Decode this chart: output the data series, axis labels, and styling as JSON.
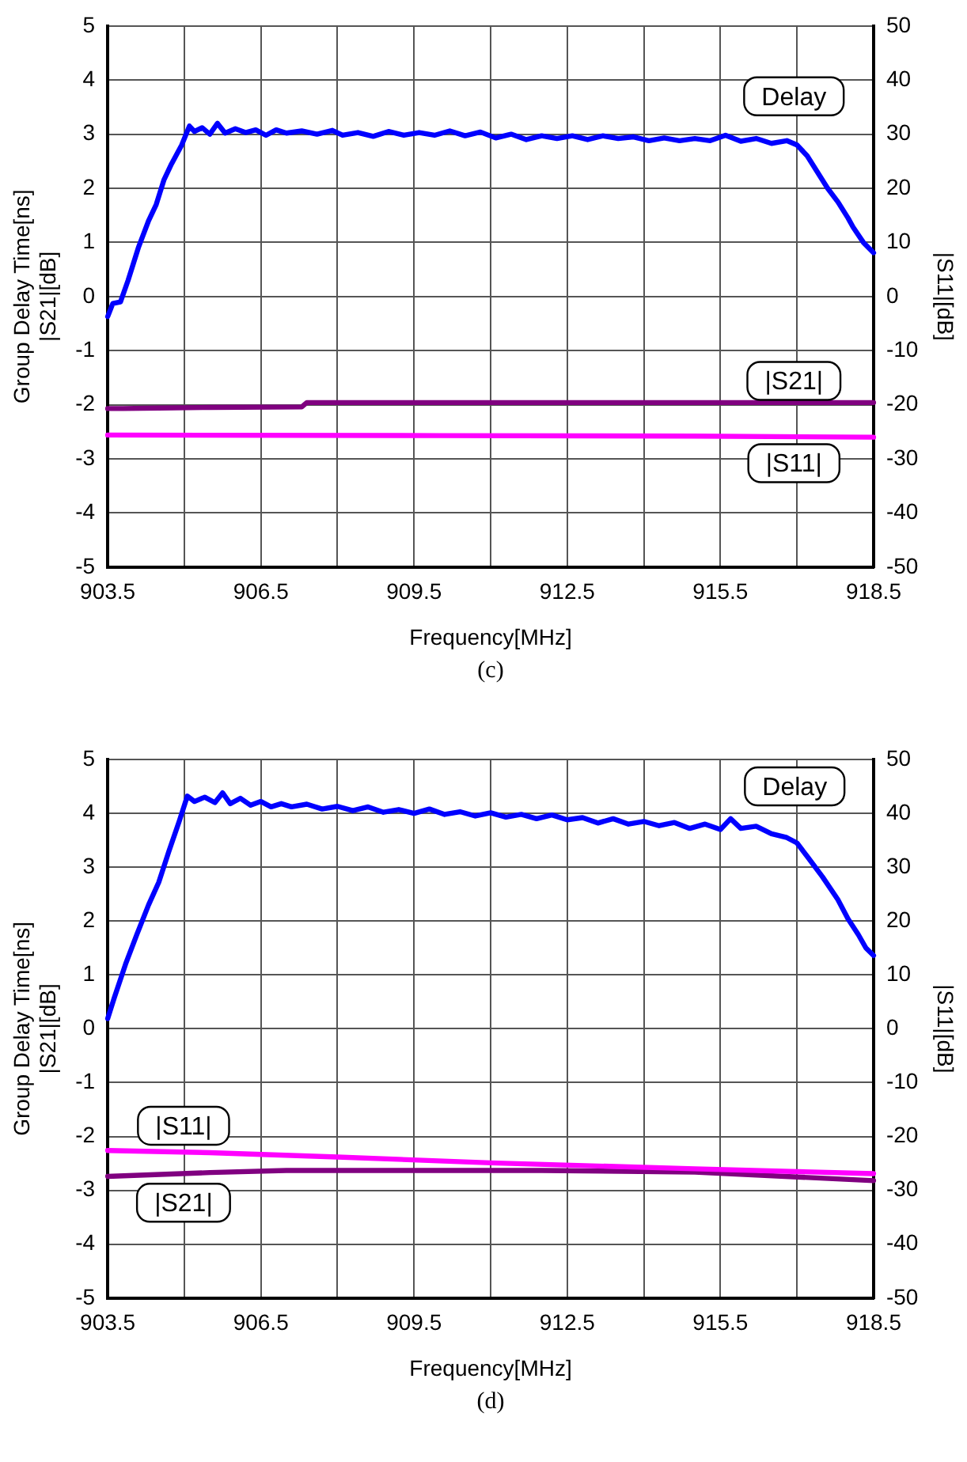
{
  "chart_data": [
    {
      "type": "line",
      "xlabel": "Frequency[MHz]",
      "ylabel": "Group Delay Time[ns]\n|S21|[dB]",
      "y2label": "|S11|[dB]",
      "annotations": [
        "(c)"
      ],
      "xlim": [
        903.5,
        918.5
      ],
      "xticks": [
        903.5,
        {
          "value": 905,
          "label": null
        },
        906.5,
        {
          "value": 908,
          "label": null
        },
        909.5,
        {
          "value": 911,
          "label": null
        },
        912.5,
        {
          "value": 914,
          "label": null
        },
        915.5,
        {
          "value": 917,
          "label": null
        },
        918.5
      ],
      "ylim": [
        -5,
        5
      ],
      "yticks": [
        -5,
        -4,
        -3,
        -2,
        -1,
        0,
        1,
        2,
        3,
        4,
        5
      ],
      "y2lim": [
        -50,
        50
      ],
      "y2ticks": [
        -50,
        -40,
        -30,
        -20,
        -10,
        0,
        10,
        20,
        30,
        40,
        50
      ],
      "grid": true,
      "legend": false,
      "marker": "none",
      "line_style": "solid",
      "series": [
        {
          "name": "Delay",
          "color": "#0000ff",
          "x": [
            903.5,
            903.6,
            903.75,
            903.9,
            904.1,
            904.3,
            904.45,
            904.6,
            904.75,
            904.95,
            905.1,
            905.2,
            905.35,
            905.5,
            905.65,
            905.8,
            906.0,
            906.2,
            906.4,
            906.6,
            906.8,
            907.0,
            907.3,
            907.6,
            907.9,
            908.1,
            908.4,
            908.7,
            909.0,
            909.3,
            909.6,
            909.9,
            910.2,
            910.5,
            910.8,
            911.1,
            911.4,
            911.7,
            912.0,
            912.3,
            912.6,
            912.9,
            913.2,
            913.5,
            913.8,
            914.1,
            914.4,
            914.7,
            915.0,
            915.3,
            915.6,
            915.9,
            916.2,
            916.5,
            916.8,
            917.0,
            917.2,
            917.4,
            917.6,
            917.8,
            918.0,
            918.1,
            918.3,
            918.5
          ],
          "values": [
            -0.37,
            -0.13,
            -0.1,
            0.3,
            0.9,
            1.4,
            1.7,
            2.15,
            2.45,
            2.8,
            3.15,
            3.05,
            3.12,
            3.0,
            3.2,
            3.02,
            3.1,
            3.03,
            3.08,
            2.98,
            3.08,
            3.02,
            3.06,
            3.0,
            3.07,
            2.98,
            3.03,
            2.96,
            3.05,
            2.98,
            3.03,
            2.98,
            3.06,
            2.97,
            3.04,
            2.93,
            3.0,
            2.9,
            2.97,
            2.92,
            2.97,
            2.9,
            2.97,
            2.92,
            2.95,
            2.88,
            2.93,
            2.88,
            2.92,
            2.88,
            2.98,
            2.87,
            2.92,
            2.83,
            2.88,
            2.8,
            2.6,
            2.3,
            2.0,
            1.75,
            1.45,
            1.28,
            1.0,
            0.81
          ]
        },
        {
          "name": "|S21|",
          "color": "#800080",
          "x": [
            903.5,
            903.8,
            904.5,
            905.5,
            907.3,
            907.4,
            910,
            915,
            918.5
          ],
          "values": [
            -2.07,
            -2.07,
            -2.06,
            -2.05,
            -2.04,
            -1.96,
            -1.96,
            -1.96,
            -1.96
          ]
        },
        {
          "name": "|S11|",
          "color": "#ff00ff",
          "axis": "y2",
          "x": [
            903.5,
            910,
            915,
            918.5
          ],
          "values": [
            -25.6,
            -25.7,
            -25.8,
            -26.0
          ]
        }
      ]
    },
    {
      "type": "line",
      "xlabel": "Frequency[MHz]",
      "ylabel": "Group Delay Time[ns]\n|S21|[dB]",
      "y2label": "|S11|[dB]",
      "annotations": [
        "(d)"
      ],
      "xlim": [
        903.5,
        918.5
      ],
      "xticks": [
        903.5,
        {
          "value": 905,
          "label": null
        },
        906.5,
        {
          "value": 908,
          "label": null
        },
        909.5,
        {
          "value": 911,
          "label": null
        },
        912.5,
        {
          "value": 914,
          "label": null
        },
        915.5,
        {
          "value": 917,
          "label": null
        },
        918.5
      ],
      "ylim": [
        -5,
        5
      ],
      "yticks": [
        -5,
        -4,
        -3,
        -2,
        -1,
        0,
        1,
        2,
        3,
        4,
        5
      ],
      "y2lim": [
        -50,
        50
      ],
      "y2ticks": [
        -50,
        -40,
        -30,
        -20,
        -10,
        0,
        10,
        20,
        30,
        40,
        50
      ],
      "grid": true,
      "legend": false,
      "marker": "none",
      "line_style": "solid",
      "series": [
        {
          "name": "Delay",
          "color": "#0000ff",
          "x": [
            903.5,
            903.63,
            903.85,
            904.07,
            904.3,
            904.5,
            904.7,
            904.9,
            905.06,
            905.2,
            905.4,
            905.6,
            905.75,
            905.9,
            906.1,
            906.3,
            906.5,
            906.7,
            906.9,
            907.1,
            907.4,
            907.7,
            908.0,
            908.3,
            908.6,
            908.9,
            909.2,
            909.5,
            909.8,
            910.1,
            910.4,
            910.7,
            911.0,
            911.3,
            911.6,
            911.9,
            912.2,
            912.5,
            912.8,
            913.1,
            913.4,
            913.7,
            914.0,
            914.3,
            914.6,
            914.9,
            915.2,
            915.5,
            915.7,
            915.9,
            916.2,
            916.5,
            916.8,
            917.0,
            917.2,
            917.5,
            917.8,
            918.0,
            918.2,
            918.35,
            918.5
          ],
          "values": [
            0.19,
            0.58,
            1.2,
            1.75,
            2.3,
            2.72,
            3.3,
            3.85,
            4.32,
            4.22,
            4.3,
            4.2,
            4.38,
            4.18,
            4.28,
            4.15,
            4.22,
            4.12,
            4.18,
            4.12,
            4.17,
            4.08,
            4.13,
            4.05,
            4.12,
            4.02,
            4.07,
            4.0,
            4.08,
            3.98,
            4.03,
            3.95,
            4.01,
            3.93,
            3.98,
            3.9,
            3.97,
            3.88,
            3.92,
            3.82,
            3.9,
            3.8,
            3.85,
            3.77,
            3.83,
            3.72,
            3.8,
            3.7,
            3.9,
            3.72,
            3.76,
            3.62,
            3.55,
            3.45,
            3.2,
            2.82,
            2.4,
            2.04,
            1.75,
            1.5,
            1.36
          ]
        },
        {
          "name": "|S11|",
          "color": "#ff00ff",
          "axis": "y2",
          "x": [
            903.5,
            905.5,
            908,
            911,
            915,
            918.5
          ],
          "values": [
            -22.6,
            -23.0,
            -23.8,
            -24.9,
            -26.0,
            -26.9
          ]
        },
        {
          "name": "|S21|",
          "color": "#800080",
          "x": [
            903.5,
            905.5,
            907,
            912,
            915,
            918.5
          ],
          "values": [
            -2.74,
            -2.67,
            -2.63,
            -2.63,
            -2.66,
            -2.82
          ]
        }
      ]
    }
  ]
}
